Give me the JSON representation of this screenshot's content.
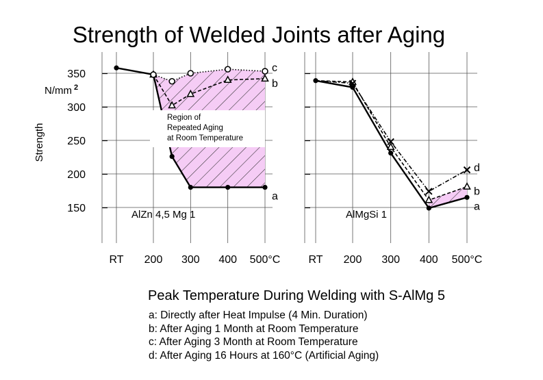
{
  "title": "Strength of Welded Joints after Aging",
  "xlabel": "Peak Temperature During Welding with S-AlMg 5",
  "ylabel": "Strength",
  "yunit_base": "N/mm",
  "yunit_exp": "2",
  "legend": [
    "a: Directly after Heat Impulse (4 Min. Duration)",
    "b: After Aging 1 Month at Room Temperature",
    "c: After Aging 3 Month at Room Temperature",
    "d: After Aging 16 Hours at 160°C (Artificial Aging)"
  ],
  "region_label": [
    "Region of",
    "Repeated Aging",
    "at Room Temperature"
  ],
  "colors": {
    "region_fill": "#f5ccf5",
    "hatch": "#2a2a2a",
    "line": "#000000",
    "grid": "#555555"
  },
  "chart_data": [
    {
      "type": "line",
      "panel_label": "AlZn 4,5 Mg 1",
      "categories": [
        "RT",
        "200",
        "300",
        "400",
        "500°C"
      ],
      "x_tick_positions": [
        "RT",
        200,
        300,
        400,
        500
      ],
      "y_ticks": [
        150,
        200,
        250,
        300,
        350
      ],
      "ylim": [
        110,
        385
      ],
      "grid": true,
      "series": [
        {
          "name": "a",
          "style": "solid",
          "marker": "filled-circle",
          "x": [
            "RT",
            200,
            250,
            300,
            400,
            500
          ],
          "values": [
            358,
            348,
            226,
            180,
            180,
            180
          ]
        },
        {
          "name": "b",
          "style": "dashed",
          "marker": "triangle",
          "x": [
            200,
            250,
            300,
            400,
            500
          ],
          "values": [
            348,
            302,
            319,
            340,
            342
          ]
        },
        {
          "name": "c",
          "style": "dotted",
          "marker": "open-circle",
          "x": [
            200,
            250,
            300,
            400,
            500
          ],
          "values": [
            348,
            338,
            350,
            356,
            353
          ]
        }
      ]
    },
    {
      "type": "line",
      "panel_label": "AlMgSi 1",
      "categories": [
        "RT",
        "200",
        "300",
        "400",
        "500°C"
      ],
      "x_tick_positions": [
        "RT",
        200,
        300,
        400,
        500
      ],
      "ylim": [
        110,
        385
      ],
      "grid": true,
      "series": [
        {
          "name": "a",
          "style": "solid",
          "marker": "filled-circle",
          "x": [
            "RT",
            200,
            300,
            400,
            500
          ],
          "values": [
            339,
            329,
            231,
            149,
            165
          ]
        },
        {
          "name": "b",
          "style": "dashed",
          "marker": "triangle",
          "x": [
            "RT",
            200,
            300,
            400,
            500
          ],
          "values": [
            339,
            337,
            240,
            161,
            181
          ]
        },
        {
          "name": "d",
          "style": "dash-dot",
          "marker": "cross",
          "x": [
            "RT",
            200,
            300,
            400,
            500
          ],
          "values": [
            339,
            335,
            248,
            174,
            206
          ]
        }
      ]
    }
  ]
}
